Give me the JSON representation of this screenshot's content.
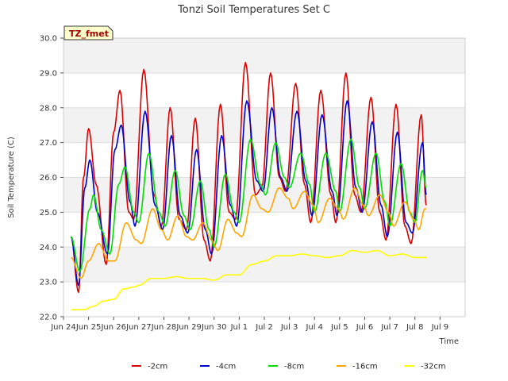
{
  "chart_data": {
    "type": "line",
    "title": "Tonzi Soil Temperatures Set C",
    "xlabel": "Time",
    "ylabel": "Soil Temperature (C)",
    "ylim": [
      22.0,
      30.0
    ],
    "yticks": [
      "22.0",
      "23.0",
      "24.0",
      "25.0",
      "26.0",
      "27.0",
      "28.0",
      "29.0",
      "30.0"
    ],
    "xlim": [
      0,
      16
    ],
    "xticks": [
      {
        "pos": 0,
        "label": "Jun 24"
      },
      {
        "pos": 1,
        "label": "Jun 25"
      },
      {
        "pos": 2,
        "label": "Jun 26"
      },
      {
        "pos": 3,
        "label": "Jun 27"
      },
      {
        "pos": 4,
        "label": "Jun 28"
      },
      {
        "pos": 5,
        "label": "Jun 29"
      },
      {
        "pos": 6,
        "label": "Jun 30"
      },
      {
        "pos": 7,
        "label": "Jul 1"
      },
      {
        "pos": 8,
        "label": "Jul 2"
      },
      {
        "pos": 9,
        "label": "Jul 3"
      },
      {
        "pos": 10,
        "label": "Jul 4"
      },
      {
        "pos": 11,
        "label": "Jul 5"
      },
      {
        "pos": 12,
        "label": "Jul 6"
      },
      {
        "pos": 13,
        "label": "Jul 7"
      },
      {
        "pos": 14,
        "label": "Jul 8"
      },
      {
        "pos": 15,
        "label": "Jul 9"
      }
    ],
    "grid": "horizontal bands",
    "legend_position": "bottom",
    "badge": "TZ_fmet",
    "series": [
      {
        "name": "-2cm",
        "color": "#dd0000",
        "points": [
          [
            0.3,
            24.3
          ],
          [
            0.6,
            22.7
          ],
          [
            0.8,
            26.0
          ],
          [
            1.0,
            27.4
          ],
          [
            1.3,
            25.8
          ],
          [
            1.7,
            23.5
          ],
          [
            2.0,
            27.3
          ],
          [
            2.25,
            28.5
          ],
          [
            2.6,
            25.0
          ],
          [
            2.8,
            24.8
          ],
          [
            3.2,
            29.1
          ],
          [
            3.6,
            25.5
          ],
          [
            3.9,
            24.6
          ],
          [
            4.25,
            28.0
          ],
          [
            4.6,
            24.8
          ],
          [
            4.9,
            24.5
          ],
          [
            5.25,
            27.7
          ],
          [
            5.6,
            24.2
          ],
          [
            5.85,
            23.6
          ],
          [
            6.25,
            28.1
          ],
          [
            6.6,
            25.0
          ],
          [
            6.85,
            24.8
          ],
          [
            7.25,
            29.3
          ],
          [
            7.65,
            25.5
          ],
          [
            7.9,
            25.7
          ],
          [
            8.25,
            29.0
          ],
          [
            8.6,
            26.0
          ],
          [
            8.85,
            25.6
          ],
          [
            9.25,
            28.7
          ],
          [
            9.6,
            25.8
          ],
          [
            9.85,
            24.7
          ],
          [
            10.25,
            28.5
          ],
          [
            10.65,
            25.5
          ],
          [
            10.85,
            24.7
          ],
          [
            11.25,
            29.0
          ],
          [
            11.6,
            25.5
          ],
          [
            11.85,
            25.0
          ],
          [
            12.25,
            28.3
          ],
          [
            12.6,
            25.0
          ],
          [
            12.85,
            24.2
          ],
          [
            13.25,
            28.1
          ],
          [
            13.6,
            24.6
          ],
          [
            13.85,
            24.1
          ],
          [
            14.25,
            27.8
          ],
          [
            14.45,
            25.2
          ]
        ]
      },
      {
        "name": "-4cm",
        "color": "#0000cc",
        "points": [
          [
            0.3,
            24.3
          ],
          [
            0.6,
            22.9
          ],
          [
            0.85,
            25.7
          ],
          [
            1.05,
            26.5
          ],
          [
            1.35,
            25.0
          ],
          [
            1.75,
            23.8
          ],
          [
            2.05,
            26.8
          ],
          [
            2.3,
            27.5
          ],
          [
            2.65,
            25.3
          ],
          [
            2.85,
            24.6
          ],
          [
            3.25,
            27.9
          ],
          [
            3.65,
            25.2
          ],
          [
            3.95,
            24.5
          ],
          [
            4.3,
            27.2
          ],
          [
            4.65,
            24.9
          ],
          [
            4.95,
            24.4
          ],
          [
            5.3,
            26.8
          ],
          [
            5.65,
            24.5
          ],
          [
            5.9,
            23.8
          ],
          [
            6.3,
            27.2
          ],
          [
            6.65,
            25.2
          ],
          [
            6.9,
            24.6
          ],
          [
            7.3,
            28.2
          ],
          [
            7.7,
            25.9
          ],
          [
            7.95,
            25.6
          ],
          [
            8.3,
            28.0
          ],
          [
            8.65,
            26.0
          ],
          [
            8.9,
            25.6
          ],
          [
            9.3,
            27.9
          ],
          [
            9.65,
            25.9
          ],
          [
            9.9,
            24.9
          ],
          [
            10.3,
            27.8
          ],
          [
            10.7,
            25.6
          ],
          [
            10.9,
            24.9
          ],
          [
            11.3,
            28.2
          ],
          [
            11.65,
            25.7
          ],
          [
            11.9,
            25.0
          ],
          [
            12.3,
            27.6
          ],
          [
            12.65,
            25.2
          ],
          [
            12.9,
            24.3
          ],
          [
            13.3,
            27.3
          ],
          [
            13.65,
            24.7
          ],
          [
            13.9,
            24.4
          ],
          [
            14.3,
            27.0
          ],
          [
            14.45,
            25.5
          ]
        ]
      },
      {
        "name": "-8cm",
        "color": "#00dd00",
        "points": [
          [
            0.3,
            24.3
          ],
          [
            0.65,
            23.3
          ],
          [
            1.05,
            25.1
          ],
          [
            1.2,
            25.5
          ],
          [
            1.5,
            24.5
          ],
          [
            1.85,
            23.8
          ],
          [
            2.2,
            25.8
          ],
          [
            2.45,
            26.3
          ],
          [
            2.8,
            25.0
          ],
          [
            3.0,
            24.7
          ],
          [
            3.4,
            26.7
          ],
          [
            3.8,
            25.0
          ],
          [
            4.05,
            24.6
          ],
          [
            4.45,
            26.2
          ],
          [
            4.8,
            24.9
          ],
          [
            5.05,
            24.5
          ],
          [
            5.45,
            25.9
          ],
          [
            5.8,
            24.5
          ],
          [
            6.0,
            24.0
          ],
          [
            6.45,
            26.1
          ],
          [
            6.8,
            25.0
          ],
          [
            7.0,
            24.7
          ],
          [
            7.45,
            27.1
          ],
          [
            7.85,
            25.8
          ],
          [
            8.05,
            25.5
          ],
          [
            8.45,
            27.0
          ],
          [
            8.8,
            26.0
          ],
          [
            9.0,
            25.7
          ],
          [
            9.45,
            26.7
          ],
          [
            9.8,
            25.8
          ],
          [
            10.0,
            25.0
          ],
          [
            10.45,
            26.7
          ],
          [
            10.85,
            25.6
          ],
          [
            11.0,
            25.0
          ],
          [
            11.45,
            27.1
          ],
          [
            11.8,
            25.7
          ],
          [
            12.0,
            25.1
          ],
          [
            12.45,
            26.7
          ],
          [
            12.8,
            25.3
          ],
          [
            13.0,
            24.6
          ],
          [
            13.45,
            26.4
          ],
          [
            13.8,
            25.0
          ],
          [
            14.0,
            24.7
          ],
          [
            14.3,
            26.2
          ],
          [
            14.45,
            25.7
          ]
        ]
      },
      {
        "name": "-16cm",
        "color": "#ffa500",
        "points": [
          [
            0.3,
            23.7
          ],
          [
            0.7,
            23.1
          ],
          [
            1.0,
            23.6
          ],
          [
            1.4,
            24.1
          ],
          [
            1.8,
            23.6
          ],
          [
            2.05,
            23.6
          ],
          [
            2.5,
            24.7
          ],
          [
            2.9,
            24.2
          ],
          [
            3.1,
            24.1
          ],
          [
            3.55,
            25.1
          ],
          [
            3.9,
            24.5
          ],
          [
            4.15,
            24.2
          ],
          [
            4.55,
            24.9
          ],
          [
            4.9,
            24.3
          ],
          [
            5.15,
            24.2
          ],
          [
            5.55,
            24.7
          ],
          [
            5.9,
            24.2
          ],
          [
            6.15,
            23.9
          ],
          [
            6.55,
            24.8
          ],
          [
            6.9,
            24.4
          ],
          [
            7.1,
            24.3
          ],
          [
            7.55,
            25.5
          ],
          [
            7.9,
            25.1
          ],
          [
            8.15,
            25.0
          ],
          [
            8.6,
            25.7
          ],
          [
            8.95,
            25.4
          ],
          [
            9.15,
            25.1
          ],
          [
            9.6,
            25.6
          ],
          [
            9.95,
            25.2
          ],
          [
            10.15,
            24.7
          ],
          [
            10.6,
            25.4
          ],
          [
            10.95,
            25.1
          ],
          [
            11.15,
            24.8
          ],
          [
            11.6,
            25.7
          ],
          [
            11.95,
            25.2
          ],
          [
            12.15,
            24.9
          ],
          [
            12.6,
            25.5
          ],
          [
            12.95,
            25.0
          ],
          [
            13.15,
            24.6
          ],
          [
            13.6,
            25.3
          ],
          [
            13.95,
            24.8
          ],
          [
            14.15,
            24.5
          ],
          [
            14.4,
            25.1
          ],
          [
            14.45,
            25.1
          ]
        ]
      },
      {
        "name": "-32cm",
        "color": "#ffff00",
        "points": [
          [
            0.3,
            22.2
          ],
          [
            0.8,
            22.2
          ],
          [
            1.2,
            22.3
          ],
          [
            1.6,
            22.45
          ],
          [
            2.0,
            22.5
          ],
          [
            2.4,
            22.8
          ],
          [
            2.8,
            22.85
          ],
          [
            3.0,
            22.9
          ],
          [
            3.5,
            23.1
          ],
          [
            4.0,
            23.1
          ],
          [
            4.5,
            23.15
          ],
          [
            5.0,
            23.1
          ],
          [
            5.5,
            23.1
          ],
          [
            6.0,
            23.05
          ],
          [
            6.5,
            23.2
          ],
          [
            7.0,
            23.2
          ],
          [
            7.5,
            23.5
          ],
          [
            8.0,
            23.6
          ],
          [
            8.5,
            23.75
          ],
          [
            9.0,
            23.75
          ],
          [
            9.5,
            23.8
          ],
          [
            10.0,
            23.75
          ],
          [
            10.5,
            23.7
          ],
          [
            11.0,
            23.75
          ],
          [
            11.5,
            23.9
          ],
          [
            12.0,
            23.85
          ],
          [
            12.5,
            23.9
          ],
          [
            13.0,
            23.75
          ],
          [
            13.5,
            23.8
          ],
          [
            14.0,
            23.7
          ],
          [
            14.45,
            23.7
          ]
        ]
      }
    ]
  }
}
